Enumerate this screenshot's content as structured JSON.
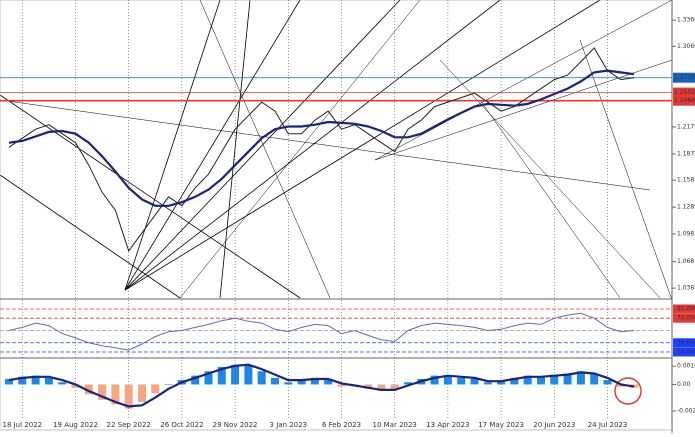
{
  "chart_data": [
    {
      "type": "line",
      "categories": [
        null,
        "18 Jul 2022",
        null,
        null,
        null,
        "19 Aug 2022",
        null,
        null,
        null,
        "22 Sep 2022",
        null,
        null,
        null,
        "26 Oct 2022",
        null,
        null,
        null,
        "29 Nov 2022",
        null,
        null,
        null,
        "3 Jan 2023",
        null,
        null,
        null,
        "6 Feb 2023",
        null,
        null,
        null,
        "10 Mar 2023",
        null,
        null,
        null,
        "13 Apr 2023",
        null,
        null,
        null,
        "17 May 2023",
        null,
        null,
        null,
        "20 Jun 2023",
        null,
        null,
        null,
        "24 Jul 2023",
        null,
        null
      ],
      "series": [
        {
          "color": "#222222",
          "values": [
            1.195,
            1.205,
            1.215,
            1.22,
            1.21,
            1.2,
            1.175,
            1.145,
            1.125,
            1.08,
            1.1,
            1.12,
            1.14,
            1.13,
            1.15,
            1.165,
            1.19,
            1.215,
            1.23,
            1.245,
            1.235,
            1.21,
            1.21,
            1.225,
            1.235,
            1.215,
            1.22,
            1.21,
            1.2,
            1.19,
            1.215,
            1.225,
            1.24,
            1.245,
            1.25,
            1.255,
            1.245,
            1.235,
            1.24,
            1.25,
            1.26,
            1.27,
            1.275,
            1.29,
            1.305,
            1.28,
            1.27,
            1.272
          ]
        },
        {
          "color": "#1a237e",
          "values": [
            1.2,
            1.202,
            1.207,
            1.212,
            1.213,
            1.21,
            1.2,
            1.185,
            1.168,
            1.15,
            1.137,
            1.13,
            1.13,
            1.134,
            1.14,
            1.148,
            1.16,
            1.175,
            1.19,
            1.205,
            1.215,
            1.218,
            1.218,
            1.22,
            1.223,
            1.222,
            1.221,
            1.218,
            1.213,
            1.206,
            1.206,
            1.21,
            1.218,
            1.226,
            1.233,
            1.24,
            1.243,
            1.242,
            1.241,
            1.243,
            1.248,
            1.254,
            1.26,
            1.268,
            1.278,
            1.28,
            1.278,
            1.276
          ]
        }
      ],
      "ylim": [
        1.0266,
        1.3583
      ],
      "yticks": [
        {
          "value": 1.336,
          "label": "1.33600"
        },
        {
          "value": 1.3069,
          "label": "1.30690"
        },
        {
          "value": 1.2175,
          "label": "1.21750"
        },
        {
          "value": 1.1875,
          "label": "1.18750"
        },
        {
          "value": 1.1585,
          "label": "1.15850"
        },
        {
          "value": 1.1285,
          "label": "1.12850"
        },
        {
          "value": 1.0987,
          "label": "1.09870"
        },
        {
          "value": 1.0681,
          "label": "1.06810"
        },
        {
          "value": 1.0387,
          "label": "1.03870"
        }
      ],
      "hlines": [
        {
          "value": 1.27207,
          "label": "1.27207",
          "color": "#1565c0"
        },
        {
          "value": 1.25557,
          "label": "1.25557",
          "color": "#e53935"
        },
        {
          "value": 1.2466,
          "label": "1.24660",
          "color": "#e53935"
        }
      ]
    },
    {
      "type": "line",
      "series": [
        {
          "color": "#5c6bc0",
          "values": [
            50,
            55,
            62,
            58,
            45,
            38,
            30,
            25,
            22,
            18,
            28,
            40,
            48,
            50,
            55,
            60,
            66,
            70,
            65,
            62,
            52,
            48,
            55,
            60,
            58,
            45,
            50,
            42,
            35,
            32,
            50,
            58,
            62,
            60,
            58,
            55,
            50,
            52,
            58,
            62,
            60,
            70,
            75,
            78,
            70,
            55,
            48,
            50
          ]
        }
      ],
      "ylim": [
        5.2,
        96.4
      ],
      "yticks": [
        {
          "value": 85,
          "label": "85.0000",
          "color": "#e53935"
        },
        {
          "value": 70,
          "label": "70.0000",
          "color": "#e53935"
        },
        {
          "value": 50,
          "color": "#999999"
        },
        {
          "value": 30,
          "label": "30.0000",
          "color": "#1e40ff"
        },
        {
          "value": 15,
          "label": "15.0000",
          "color": "#1e40ff"
        }
      ]
    },
    {
      "type": "bar",
      "colors": [
        "#1e88e5",
        "#f4a582"
      ],
      "values": [
        0.0005,
        0.0007,
        0.0008,
        0.0006,
        0.0002,
        -0.0003,
        -0.0009,
        -0.0014,
        -0.0018,
        -0.0022,
        -0.0016,
        -0.0008,
        0.0,
        0.0004,
        0.0008,
        0.0012,
        0.0016,
        0.0018,
        0.0017,
        0.0012,
        0.0006,
        0.0002,
        0.0004,
        0.0006,
        0.0004,
        -0.0002,
        -0.0001,
        -0.0004,
        -0.0006,
        -0.0004,
        0.0002,
        0.0005,
        0.0008,
        0.0008,
        0.0006,
        0.0005,
        0.0002,
        0.0003,
        0.0006,
        0.0008,
        0.0007,
        0.0009,
        0.001,
        0.0012,
        0.001,
        0.0004,
        -0.0002,
        -0.0003
      ],
      "series": [
        {
          "color": "#1a237e",
          "values": [
            0.0004,
            0.0006,
            0.0007,
            0.0007,
            0.0004,
            0.0,
            -0.0006,
            -0.0011,
            -0.0016,
            -0.002,
            -0.0019,
            -0.0012,
            -0.0004,
            0.0002,
            0.0006,
            0.001,
            0.0014,
            0.0017,
            0.0018,
            0.0014,
            0.0009,
            0.0004,
            0.0004,
            0.0005,
            0.0005,
            0.0001,
            -0.0001,
            -0.0003,
            -0.0005,
            -0.0005,
            -0.0001,
            0.0003,
            0.0006,
            0.0008,
            0.0007,
            0.0006,
            0.0003,
            0.0003,
            0.0005,
            0.0007,
            0.0007,
            0.0008,
            0.0009,
            0.0011,
            0.001,
            0.0006,
            0.0,
            -0.0002
          ]
        }
      ],
      "ylim": [
        -0.00306,
        0.00223
      ],
      "yticks": [
        0.0016725,
        {
          "value": 0,
          "label": "0.00"
        },
        -0.0024206
      ]
    }
  ]
}
